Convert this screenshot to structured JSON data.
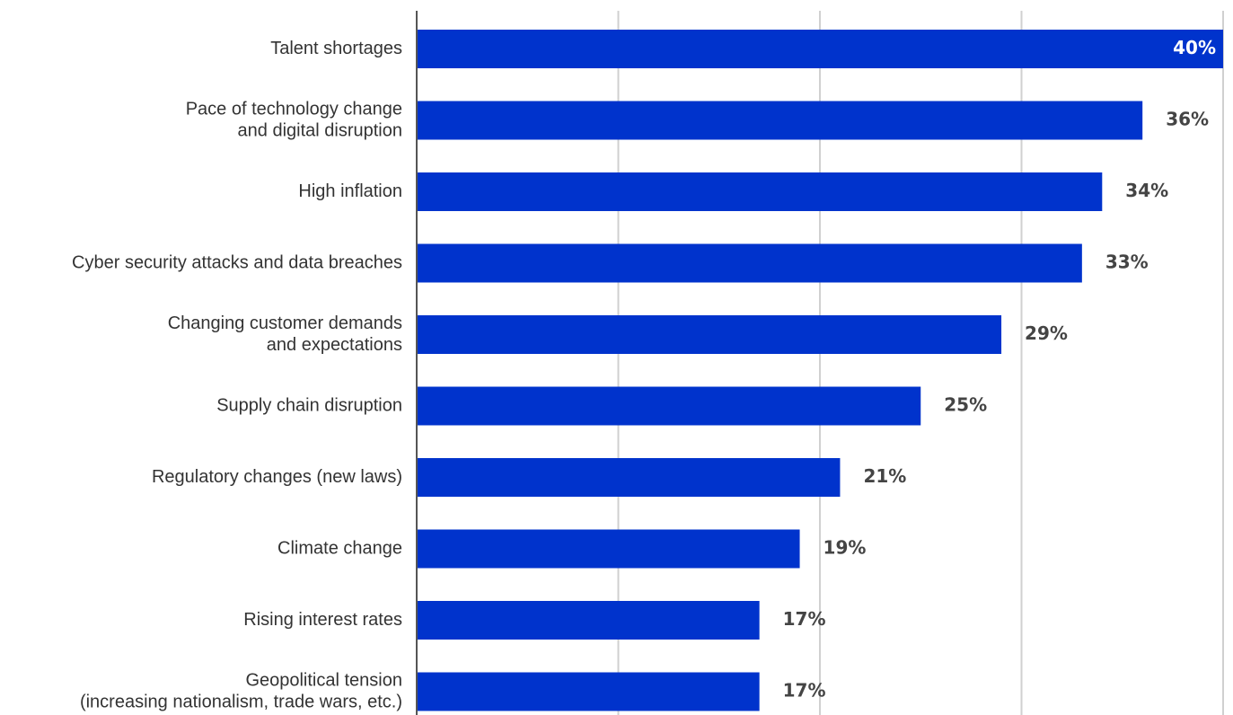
{
  "chart_data": {
    "type": "bar",
    "orientation": "horizontal",
    "categories": [
      [
        "Talent shortages"
      ],
      [
        "Pace of technology change",
        "and digital disruption"
      ],
      [
        "High inflation"
      ],
      [
        "Cyber security attacks and data breaches"
      ],
      [
        "Changing customer demands",
        "and expectations"
      ],
      [
        "Supply chain disruption"
      ],
      [
        "Regulatory changes (new laws)"
      ],
      [
        "Climate change"
      ],
      [
        "Rising interest rates"
      ],
      [
        "Geopolitical tension",
        "(increasing nationalism, trade wars, etc.)"
      ]
    ],
    "values": [
      40,
      36,
      34,
      33,
      29,
      25,
      21,
      19,
      17,
      17
    ],
    "value_labels": [
      "40%",
      "36%",
      "34%",
      "33%",
      "29%",
      "25%",
      "21%",
      "19%",
      "17%",
      "17%"
    ],
    "xlim": [
      0,
      40
    ],
    "x_gridlines": [
      0,
      10,
      20,
      30,
      40
    ],
    "grid": true,
    "title": "",
    "xlabel": "",
    "ylabel": "",
    "bar_color": "#0033CC",
    "text_color": "#333333",
    "value_label_color": "#444444",
    "inside_label_color": "#FFFFFF",
    "grid_color": "#D0D0D0",
    "axis_color": "#555555"
  }
}
